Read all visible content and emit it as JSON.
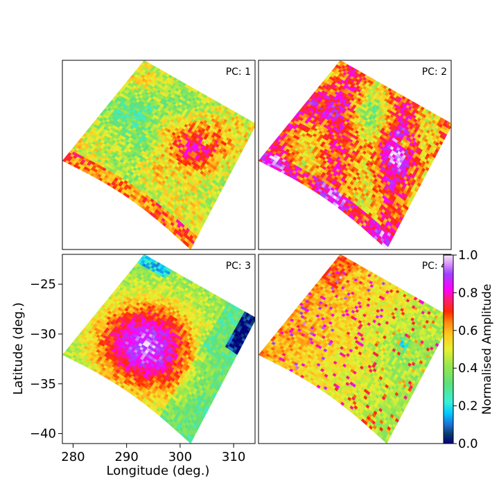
{
  "chart_data": {
    "type": "heatmap",
    "colormap": "gist_ncar",
    "panels": [
      {
        "label": "PC: 1",
        "pattern": "pc1"
      },
      {
        "label": "PC: 2",
        "pattern": "pc2"
      },
      {
        "label": "PC: 3",
        "pattern": "pc3"
      },
      {
        "label": "PC: 4",
        "pattern": "pc4"
      }
    ],
    "xlabel": "Longitude (deg.)",
    "ylabel": "Latitude (deg.)",
    "xlim": [
      278,
      314
    ],
    "ylim": [
      -41,
      -22
    ],
    "xticks": [
      280,
      290,
      300,
      310
    ],
    "yticks": [
      -25,
      -30,
      -35,
      -40
    ],
    "xtick_labels": [
      "280",
      "290",
      "300",
      "310"
    ],
    "ytick_labels": [
      "−25",
      "−30",
      "−35",
      "−40"
    ],
    "colorbar": {
      "label": "Normalised Amplitude",
      "range": [
        0,
        1
      ],
      "ticks": [
        "0.0",
        "0.2",
        "0.4",
        "0.6",
        "0.8",
        "1.0"
      ]
    }
  }
}
